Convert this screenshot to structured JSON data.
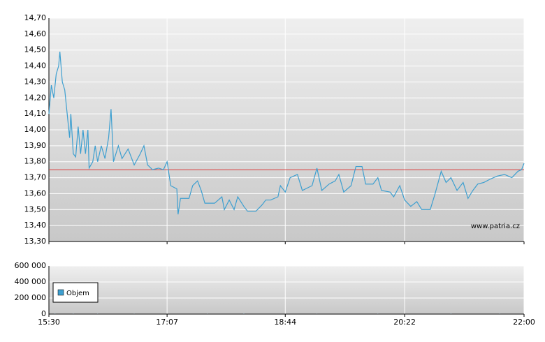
{
  "chart_data": [
    {
      "type": "line",
      "color": "#3d9fd0",
      "grid": true,
      "watermark": "www.patria.cz",
      "reference_line": 13.75,
      "reference_color": "#d94040",
      "xlim": [
        930,
        1320
      ],
      "xticks": [
        {
          "value": 930,
          "label": "15:30"
        },
        {
          "value": 1027,
          "label": "17:07"
        },
        {
          "value": 1124,
          "label": "18:44"
        },
        {
          "value": 1222,
          "label": "20:22"
        },
        {
          "value": 1320,
          "label": "22:00"
        }
      ],
      "ylim": [
        13.3,
        14.7
      ],
      "yticks": [
        {
          "value": 13.3,
          "label": "13,30"
        },
        {
          "value": 13.4,
          "label": "13,40"
        },
        {
          "value": 13.5,
          "label": "13,50"
        },
        {
          "value": 13.6,
          "label": "13,60"
        },
        {
          "value": 13.7,
          "label": "13,70"
        },
        {
          "value": 13.8,
          "label": "13,80"
        },
        {
          "value": 13.9,
          "label": "13,90"
        },
        {
          "value": 14.0,
          "label": "14,00"
        },
        {
          "value": 14.1,
          "label": "14,10"
        },
        {
          "value": 14.2,
          "label": "14,20"
        },
        {
          "value": 14.3,
          "label": "14,30"
        },
        {
          "value": 14.4,
          "label": "14,40"
        },
        {
          "value": 14.5,
          "label": "14,50"
        },
        {
          "value": 14.6,
          "label": "14,60"
        },
        {
          "value": 14.7,
          "label": "14,70"
        }
      ],
      "x": [
        930,
        932,
        934,
        936,
        938,
        939,
        941,
        943,
        945,
        947,
        948,
        950,
        952,
        954,
        956,
        958,
        960,
        962,
        963,
        966,
        968,
        970,
        973,
        976,
        979,
        981,
        983,
        987,
        990,
        995,
        1000,
        1005,
        1008,
        1011,
        1015,
        1020,
        1024,
        1027,
        1030,
        1035,
        1036,
        1038,
        1045,
        1048,
        1052,
        1055,
        1058,
        1066,
        1072,
        1074,
        1078,
        1082,
        1085,
        1090,
        1093,
        1100,
        1105,
        1108,
        1112,
        1118,
        1120,
        1124,
        1128,
        1134,
        1138,
        1146,
        1150,
        1154,
        1160,
        1165,
        1168,
        1172,
        1178,
        1182,
        1187,
        1190,
        1196,
        1200,
        1203,
        1210,
        1213,
        1218,
        1222,
        1227,
        1232,
        1236,
        1243,
        1247,
        1252,
        1256,
        1260,
        1265,
        1270,
        1274,
        1278,
        1282,
        1287,
        1292,
        1298,
        1304,
        1310,
        1315,
        1318,
        1320
      ],
      "values": [
        14.1,
        14.28,
        14.2,
        14.35,
        14.4,
        14.49,
        14.3,
        14.25,
        14.1,
        13.95,
        14.1,
        13.85,
        13.83,
        14.02,
        13.85,
        14.0,
        13.85,
        14.0,
        13.76,
        13.8,
        13.9,
        13.8,
        13.9,
        13.82,
        13.95,
        14.13,
        13.8,
        13.9,
        13.82,
        13.88,
        13.78,
        13.85,
        13.9,
        13.78,
        13.75,
        13.76,
        13.75,
        13.8,
        13.65,
        13.63,
        13.47,
        13.57,
        13.57,
        13.65,
        13.68,
        13.62,
        13.54,
        13.54,
        13.58,
        13.5,
        13.56,
        13.5,
        13.58,
        13.52,
        13.49,
        13.49,
        13.53,
        13.56,
        13.56,
        13.58,
        13.65,
        13.61,
        13.7,
        13.72,
        13.62,
        13.65,
        13.76,
        13.62,
        13.66,
        13.68,
        13.72,
        13.61,
        13.65,
        13.77,
        13.77,
        13.66,
        13.66,
        13.7,
        13.62,
        13.61,
        13.58,
        13.65,
        13.56,
        13.52,
        13.55,
        13.5,
        13.5,
        13.6,
        13.74,
        13.67,
        13.7,
        13.62,
        13.67,
        13.57,
        13.62,
        13.66,
        13.67,
        13.69,
        13.71,
        13.72,
        13.7,
        13.74,
        13.75,
        13.79
      ]
    },
    {
      "type": "bar",
      "grid": true,
      "legend": "upper left",
      "xlim": [
        930,
        1320
      ],
      "xticks": [
        {
          "value": 930,
          "label": "15:30"
        },
        {
          "value": 1027,
          "label": "17:07"
        },
        {
          "value": 1124,
          "label": "18:44"
        },
        {
          "value": 1222,
          "label": "20:22"
        },
        {
          "value": 1320,
          "label": "22:00"
        }
      ],
      "ylim": [
        0,
        600000
      ],
      "yticks": [
        0,
        {
          "value": 200000,
          "label": "200 000"
        },
        {
          "value": 400000,
          "label": "400 000"
        },
        {
          "value": 600000,
          "label": "600 000"
        }
      ],
      "series": [
        {
          "name": "Objem",
          "color": "#3d9fd0",
          "x": [
            935,
            950,
            970,
            1000,
            1060,
            1090,
            1150,
            1200,
            1260,
            1300
          ],
          "values": [
            3000,
            2500,
            2000,
            1500,
            2000,
            3000,
            1500,
            2000,
            3000,
            2000
          ]
        }
      ]
    }
  ]
}
